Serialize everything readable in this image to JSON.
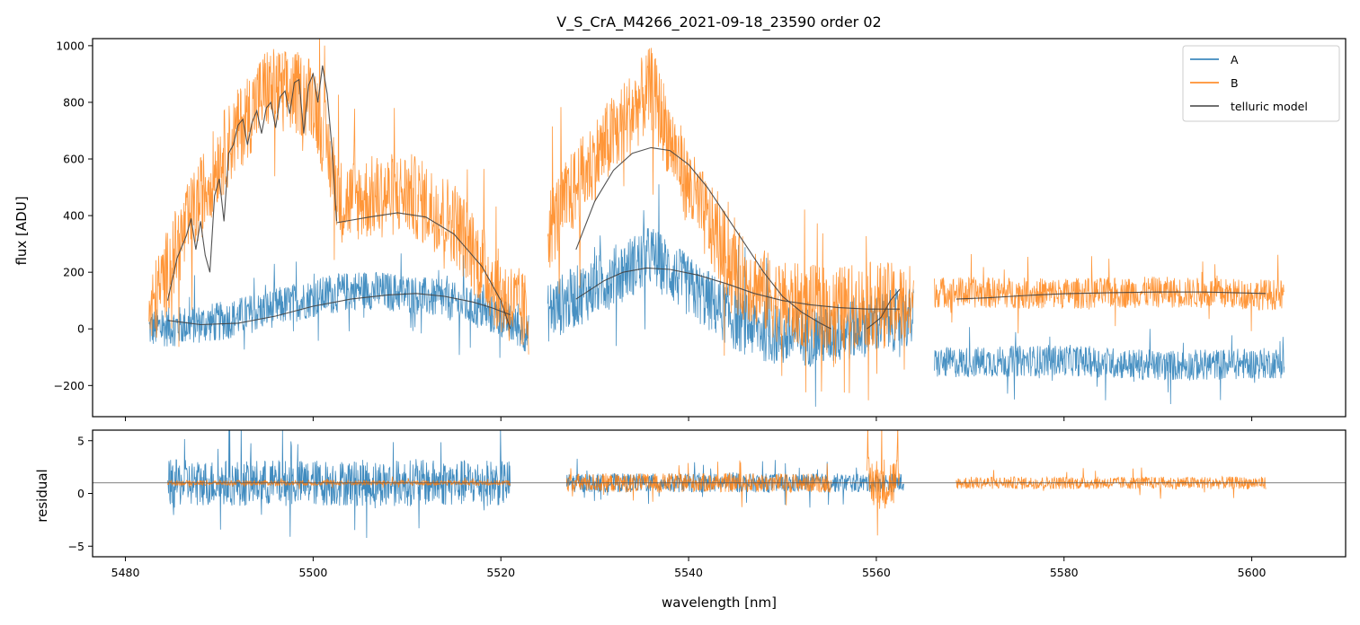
{
  "chart_data": [
    {
      "type": "line",
      "panel": "top",
      "title": "V_S_CrA_M4266_2021-09-18_23590  order 02",
      "xlabel": "",
      "ylabel": "flux [ADU]",
      "xlim": [
        5476.5,
        5610
      ],
      "ylim": [
        -310,
        1025
      ],
      "yticks": [
        -200,
        0,
        200,
        400,
        600,
        800,
        1000
      ],
      "xticks": [
        5480,
        5500,
        5520,
        5540,
        5560,
        5580,
        5600
      ],
      "legend": {
        "placement": "top-right",
        "entries": [
          "A",
          "B",
          "telluric model"
        ]
      },
      "series": [
        {
          "name": "A",
          "color": "#1f77b4",
          "segments": [
            {
              "x_start": 5482.5,
              "x_end": 5523.0,
              "envelope": [
                [
                  5482.5,
                  0
                ],
                [
                  5490,
                  25
                ],
                [
                  5500,
                  110
                ],
                [
                  5505,
                  140
                ],
                [
                  5510,
                  125
                ],
                [
                  5515,
                  95
                ],
                [
                  5520,
                  40
                ],
                [
                  5523,
                  -20
                ]
              ],
              "noise": 70
            },
            {
              "x_start": 5525.0,
              "x_end": 5564.0,
              "envelope": [
                [
                  5525,
                  60
                ],
                [
                  5530,
                  150
                ],
                [
                  5536,
                  260
                ],
                [
                  5540,
                  150
                ],
                [
                  5545,
                  30
                ],
                [
                  5550,
                  -30
                ],
                [
                  5555,
                  -20
                ],
                [
                  5560,
                  20
                ],
                [
                  5564,
                  40
                ]
              ],
              "noise": 110
            },
            {
              "x_start": 5566.2,
              "x_end": 5603.5,
              "envelope": [
                [
                  5566.2,
                  -120
                ],
                [
                  5580,
                  -110
                ],
                [
                  5590,
                  -130
                ],
                [
                  5603.5,
                  -120
                ]
              ],
              "noise": 55
            }
          ]
        },
        {
          "name": "B",
          "color": "#ff7f0e",
          "segments": [
            {
              "x_start": 5482.5,
              "x_end": 5523.0,
              "envelope": [
                [
                  5482.5,
                  40
                ],
                [
                  5485,
                  250
                ],
                [
                  5490,
                  600
                ],
                [
                  5495,
                  850
                ],
                [
                  5500,
                  820
                ],
                [
                  5503,
                  450
                ],
                [
                  5510,
                  480
                ],
                [
                  5515,
                  380
                ],
                [
                  5520,
                  120
                ],
                [
                  5523,
                  40
                ]
              ],
              "noise": 150
            },
            {
              "x_start": 5525.0,
              "x_end": 5564.0,
              "envelope": [
                [
                  5525,
                  350
                ],
                [
                  5530,
                  600
                ],
                [
                  5536,
                  850
                ],
                [
                  5540,
                  500
                ],
                [
                  5545,
                  200
                ],
                [
                  5550,
                  90
                ],
                [
                  5555,
                  70
                ],
                [
                  5560,
                  90
                ],
                [
                  5564,
                  80
                ]
              ],
              "noise": 150
            },
            {
              "x_start": 5566.2,
              "x_end": 5603.5,
              "envelope": [
                [
                  5566.2,
                  130
                ],
                [
                  5580,
                  125
                ],
                [
                  5590,
                  130
                ],
                [
                  5603.5,
                  120
                ]
              ],
              "noise": 55
            }
          ]
        },
        {
          "name": "telluric model",
          "color": "#404040",
          "segments": [
            {
              "points": [
                [
                  5484.5,
                  100
                ],
                [
                  5485.5,
                  250
                ],
                [
                  5486.5,
                  330
                ],
                [
                  5487.0,
                  390
                ],
                [
                  5487.5,
                  280
                ],
                [
                  5488.0,
                  380
                ],
                [
                  5488.5,
                  260
                ],
                [
                  5489.0,
                  200
                ],
                [
                  5489.5,
                  470
                ],
                [
                  5490.0,
                  530
                ],
                [
                  5490.5,
                  380
                ],
                [
                  5491.0,
                  620
                ],
                [
                  5491.5,
                  650
                ],
                [
                  5492.0,
                  720
                ],
                [
                  5492.5,
                  740
                ],
                [
                  5493.0,
                  650
                ],
                [
                  5493.5,
                  730
                ],
                [
                  5494.0,
                  770
                ],
                [
                  5494.5,
                  690
                ],
                [
                  5495.0,
                  780
                ],
                [
                  5495.5,
                  800
                ],
                [
                  5496.0,
                  710
                ],
                [
                  5496.5,
                  820
                ],
                [
                  5497.0,
                  840
                ],
                [
                  5497.5,
                  760
                ],
                [
                  5498.0,
                  870
                ],
                [
                  5498.5,
                  880
                ],
                [
                  5499.0,
                  690
                ],
                [
                  5499.5,
                  860
                ],
                [
                  5500.0,
                  900
                ],
                [
                  5500.5,
                  800
                ],
                [
                  5501.0,
                  930
                ],
                [
                  5501.5,
                  830
                ],
                [
                  5502.0,
                  640
                ],
                [
                  5502.5,
                  380
                ]
              ]
            },
            {
              "points": [
                [
                  5502.5,
                  375
                ],
                [
                  5506,
                  395
                ],
                [
                  5509,
                  410
                ],
                [
                  5512,
                  395
                ],
                [
                  5515,
                  335
                ],
                [
                  5518,
                  220
                ],
                [
                  5520,
                  100
                ],
                [
                  5521,
                  0
                ]
              ]
            },
            {
              "points": [
                [
                  5484.5,
                  30
                ],
                [
                  5488,
                  15
                ],
                [
                  5492,
                  20
                ],
                [
                  5496,
                  45
                ],
                [
                  5500,
                  80
                ],
                [
                  5504,
                  105
                ],
                [
                  5508,
                  120
                ],
                [
                  5511,
                  125
                ],
                [
                  5514,
                  115
                ],
                [
                  5517,
                  95
                ],
                [
                  5519,
                  75
                ],
                [
                  5521,
                  50
                ]
              ]
            },
            {
              "points": [
                [
                  5528,
                  280
                ],
                [
                  5530,
                  450
                ],
                [
                  5532,
                  560
                ],
                [
                  5534,
                  620
                ],
                [
                  5536,
                  640
                ],
                [
                  5538,
                  630
                ],
                [
                  5540,
                  580
                ],
                [
                  5542,
                  500
                ],
                [
                  5544,
                  400
                ],
                [
                  5546,
                  300
                ],
                [
                  5548,
                  200
                ],
                [
                  5550,
                  115
                ],
                [
                  5552,
                  60
                ],
                [
                  5554,
                  20
                ],
                [
                  5555.2,
                  0
                ]
              ]
            },
            {
              "points": [
                [
                  5528,
                  105
                ],
                [
                  5531,
                  170
                ],
                [
                  5533,
                  200
                ],
                [
                  5535.5,
                  215
                ],
                [
                  5538,
                  210
                ],
                [
                  5541,
                  190
                ],
                [
                  5544,
                  160
                ],
                [
                  5547,
                  125
                ],
                [
                  5550,
                  100
                ],
                [
                  5553,
                  85
                ],
                [
                  5556,
                  75
                ],
                [
                  5559,
                  70
                ],
                [
                  5562.5,
                  70
                ]
              ]
            },
            {
              "points": [
                [
                  5559,
                  0
                ],
                [
                  5560.5,
                  40
                ],
                [
                  5561.5,
                  100
                ],
                [
                  5562.5,
                  140
                ]
              ]
            },
            {
              "points": [
                [
                  5568.5,
                  105
                ],
                [
                  5572,
                  110
                ],
                [
                  5576,
                  118
                ],
                [
                  5580,
                  124
                ],
                [
                  5585,
                  128
                ],
                [
                  5590,
                  130
                ],
                [
                  5595,
                  130
                ],
                [
                  5601.5,
                  125
                ]
              ]
            }
          ]
        }
      ]
    },
    {
      "type": "line",
      "panel": "bottom",
      "title": "",
      "xlabel": "wavelength [nm]",
      "ylabel": "residual",
      "xlim": [
        5476.5,
        5610
      ],
      "ylim": [
        -6,
        6
      ],
      "yticks": [
        -5,
        0,
        5
      ],
      "xticks": [
        5480,
        5500,
        5520,
        5540,
        5560,
        5580,
        5600
      ],
      "xtick_labels": [
        "5480",
        "5500",
        "5520",
        "5540",
        "5560",
        "5580",
        "5600"
      ],
      "reference_line": 1,
      "series": [
        {
          "name": "A",
          "color": "#1f77b4",
          "segments": [
            {
              "x_start": 5484.5,
              "x_end": 5521.0,
              "center": 1,
              "noise": 2.2
            },
            {
              "x_start": 5527.0,
              "x_end": 5563.0,
              "center": 1,
              "noise": 0.9
            }
          ]
        },
        {
          "name": "B",
          "color": "#ff7f0e",
          "segments": [
            {
              "x_start": 5484.5,
              "x_end": 5521.0,
              "center": 1,
              "noise": 0.25
            },
            {
              "x_start": 5527.0,
              "x_end": 5555.2,
              "center": 1,
              "noise": 0.9
            },
            {
              "x_start": 5559.0,
              "x_end": 5562.5,
              "center": 1,
              "noise": 2.5
            },
            {
              "x_start": 5568.5,
              "x_end": 5601.5,
              "center": 1,
              "noise": 0.6
            }
          ]
        }
      ]
    }
  ]
}
